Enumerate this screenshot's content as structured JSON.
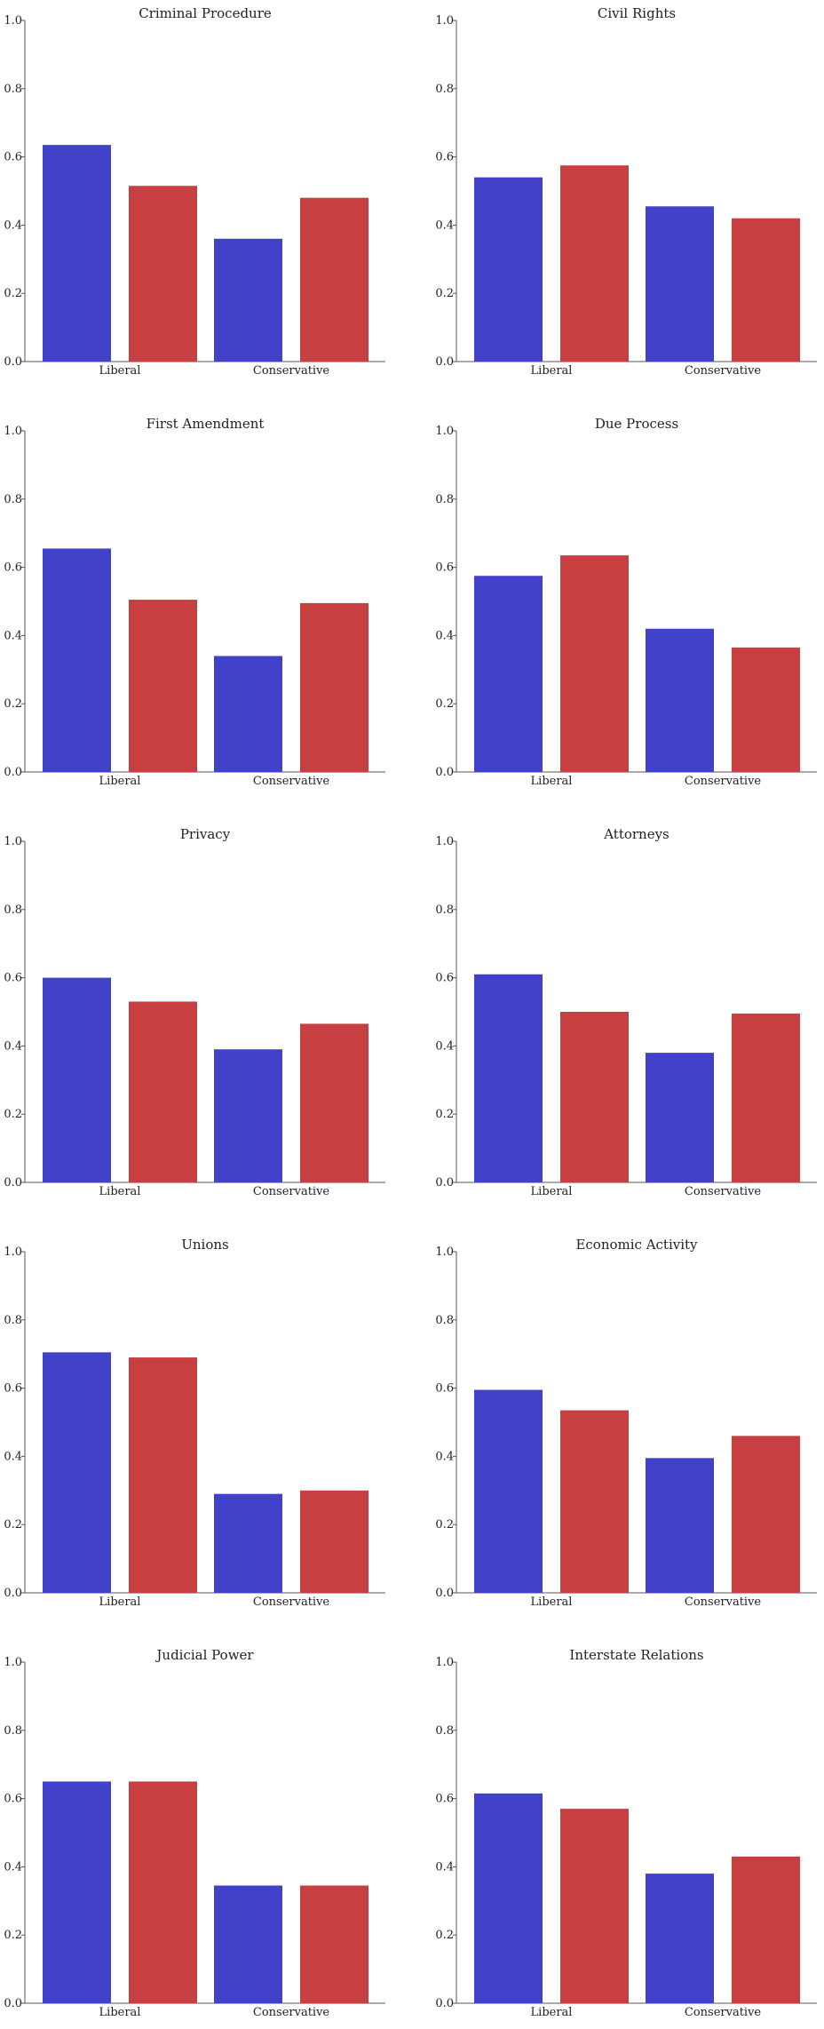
{
  "colors": {
    "blue": "#4141c9",
    "red": "#c83f42",
    "axis": "#555555"
  },
  "chart_data": [
    {
      "type": "bar",
      "title": "Criminal Procedure",
      "categories": [
        "Liberal",
        "Conservative"
      ],
      "series": [
        {
          "name": "blue",
          "values": [
            0.635,
            0.36
          ]
        },
        {
          "name": "red",
          "values": [
            0.515,
            0.48
          ]
        }
      ],
      "ylim": [
        0,
        1.0
      ],
      "yticks": [
        "0.0",
        "0.2",
        "0.4",
        "0.6",
        "0.8",
        "1.0"
      ],
      "grid": false
    },
    {
      "type": "bar",
      "title": "Civil Rights",
      "categories": [
        "Liberal",
        "Conservative"
      ],
      "series": [
        {
          "name": "blue",
          "values": [
            0.54,
            0.455
          ]
        },
        {
          "name": "red",
          "values": [
            0.575,
            0.42
          ]
        }
      ],
      "ylim": [
        0,
        1.0
      ],
      "yticks": [
        "0.0",
        "0.2",
        "0.4",
        "0.6",
        "0.8",
        "1.0"
      ],
      "grid": false
    },
    {
      "type": "bar",
      "title": "First Amendment",
      "categories": [
        "Liberal",
        "Conservative"
      ],
      "series": [
        {
          "name": "blue",
          "values": [
            0.655,
            0.34
          ]
        },
        {
          "name": "red",
          "values": [
            0.505,
            0.495
          ]
        }
      ],
      "ylim": [
        0,
        1.0
      ],
      "yticks": [
        "0.0",
        "0.2",
        "0.4",
        "0.6",
        "0.8",
        "1.0"
      ],
      "grid": false
    },
    {
      "type": "bar",
      "title": "Due Process",
      "categories": [
        "Liberal",
        "Conservative"
      ],
      "series": [
        {
          "name": "blue",
          "values": [
            0.575,
            0.42
          ]
        },
        {
          "name": "red",
          "values": [
            0.635,
            0.365
          ]
        }
      ],
      "ylim": [
        0,
        1.0
      ],
      "yticks": [
        "0.0",
        "0.2",
        "0.4",
        "0.6",
        "0.8",
        "1.0"
      ],
      "grid": false
    },
    {
      "type": "bar",
      "title": "Privacy",
      "categories": [
        "Liberal",
        "Conservative"
      ],
      "series": [
        {
          "name": "blue",
          "values": [
            0.6,
            0.39
          ]
        },
        {
          "name": "red",
          "values": [
            0.53,
            0.465
          ]
        }
      ],
      "ylim": [
        0,
        1.0
      ],
      "yticks": [
        "0.0",
        "0.2",
        "0.4",
        "0.6",
        "0.8",
        "1.0"
      ],
      "grid": false
    },
    {
      "type": "bar",
      "title": "Attorneys",
      "categories": [
        "Liberal",
        "Conservative"
      ],
      "series": [
        {
          "name": "blue",
          "values": [
            0.61,
            0.38
          ]
        },
        {
          "name": "red",
          "values": [
            0.5,
            0.495
          ]
        }
      ],
      "ylim": [
        0,
        1.0
      ],
      "yticks": [
        "0.0",
        "0.2",
        "0.4",
        "0.6",
        "0.8",
        "1.0"
      ],
      "grid": false
    },
    {
      "type": "bar",
      "title": "Unions",
      "categories": [
        "Liberal",
        "Conservative"
      ],
      "series": [
        {
          "name": "blue",
          "values": [
            0.705,
            0.29
          ]
        },
        {
          "name": "red",
          "values": [
            0.69,
            0.3
          ]
        }
      ],
      "ylim": [
        0,
        1.0
      ],
      "yticks": [
        "0.0",
        "0.2",
        "0.4",
        "0.6",
        "0.8",
        "1.0"
      ],
      "grid": false
    },
    {
      "type": "bar",
      "title": "Economic Activity",
      "categories": [
        "Liberal",
        "Conservative"
      ],
      "series": [
        {
          "name": "blue",
          "values": [
            0.595,
            0.395
          ]
        },
        {
          "name": "red",
          "values": [
            0.535,
            0.46
          ]
        }
      ],
      "ylim": [
        0,
        1.0
      ],
      "yticks": [
        "0.0",
        "0.2",
        "0.4",
        "0.6",
        "0.8",
        "1.0"
      ],
      "grid": false
    },
    {
      "type": "bar",
      "title": "Judicial Power",
      "categories": [
        "Liberal",
        "Conservative"
      ],
      "series": [
        {
          "name": "blue",
          "values": [
            0.65,
            0.345
          ]
        },
        {
          "name": "red",
          "values": [
            0.65,
            0.345
          ]
        }
      ],
      "ylim": [
        0,
        1.0
      ],
      "yticks": [
        "0.0",
        "0.2",
        "0.4",
        "0.6",
        "0.8",
        "1.0"
      ],
      "grid": false
    },
    {
      "type": "bar",
      "title": "Interstate Relations",
      "categories": [
        "Liberal",
        "Conservative"
      ],
      "series": [
        {
          "name": "blue",
          "values": [
            0.615,
            0.38
          ]
        },
        {
          "name": "red",
          "values": [
            0.57,
            0.43
          ]
        }
      ],
      "ylim": [
        0,
        1.0
      ],
      "yticks": [
        "0.0",
        "0.2",
        "0.4",
        "0.6",
        "0.8",
        "1.0"
      ],
      "grid": false
    }
  ]
}
